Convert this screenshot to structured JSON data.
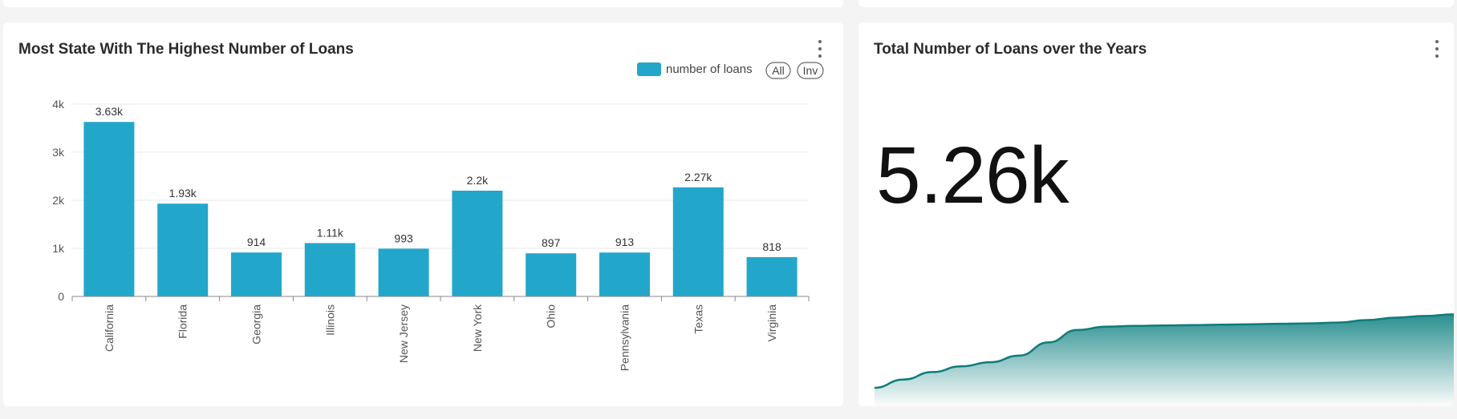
{
  "bar_card": {
    "title": "Most State With The Highest Number of Loans",
    "legend_label": "number of loans",
    "legend_color": "#22a7cb",
    "button_all": "All",
    "button_inv": "Inv",
    "menu_icon": "more-vertical-icon"
  },
  "kpi_card": {
    "title": "Total Number of Loans over the Years",
    "value": "5.26k",
    "menu_icon": "more-vertical-icon",
    "line_color": "#0e7c7b"
  },
  "chart_data": [
    {
      "type": "bar",
      "title": "Most State With The Highest Number of Loans",
      "xlabel": "",
      "ylabel": "",
      "categories": [
        "California",
        "Florida",
        "Georgia",
        "Illinois",
        "New Jersey",
        "New York",
        "Ohio",
        "Pennsylvania",
        "Texas",
        "Virginia"
      ],
      "series": [
        {
          "name": "number of loans",
          "values": [
            3630,
            1930,
            914,
            1110,
            993,
            2200,
            897,
            913,
            2270,
            818
          ],
          "labels": [
            "3.63k",
            "1.93k",
            "914",
            "1.11k",
            "993",
            "2.2k",
            "897",
            "913",
            "2.27k",
            "818"
          ]
        }
      ],
      "ylim": [
        0,
        4000
      ],
      "yticks": [
        0,
        1000,
        2000,
        3000,
        4000
      ],
      "ytick_labels": [
        "0",
        "1k",
        "2k",
        "3k",
        "4k"
      ],
      "grid": true,
      "legend_position": "top-right"
    },
    {
      "type": "area",
      "title": "Total Number of Loans over the Years",
      "series": [
        {
          "values": [
            0.0,
            0.1,
            0.19,
            0.26,
            0.31,
            0.39,
            0.55,
            0.7,
            0.74,
            0.75,
            0.755,
            0.76,
            0.765,
            0.77,
            0.775,
            0.78,
            0.79,
            0.82,
            0.85,
            0.87,
            0.89
          ]
        }
      ],
      "grid": false
    }
  ]
}
